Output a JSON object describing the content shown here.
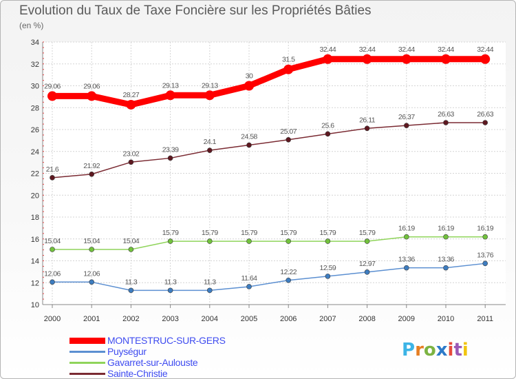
{
  "title": "Evolution du Taux de Taxe Foncière sur les Propriétés Bâties",
  "subtitle": "(en %)",
  "logo": {
    "text": "Proxiti",
    "colors": [
      "#3cb4e6",
      "#e67e22",
      "#7cb342",
      "#2c7ac9",
      "#e74c3c",
      "#9b59b6",
      "#f1c40f"
    ]
  },
  "chart_data": {
    "type": "line",
    "x": [
      "2000",
      "2001",
      "2002",
      "2003",
      "2004",
      "2005",
      "2006",
      "2007",
      "2008",
      "2009",
      "2010",
      "2011"
    ],
    "ylim": [
      10,
      34
    ],
    "yticks": [
      "10",
      "12",
      "14",
      "16",
      "18",
      "20",
      "22",
      "24",
      "26",
      "28",
      "30",
      "32",
      "34"
    ],
    "grid": true,
    "legend_placement": "bottom-left",
    "series": [
      {
        "name": "MONTESTRUC-SUR-GERS",
        "color": "#ff0000",
        "marker_color": "#ff0000",
        "values": [
          29.06,
          29.06,
          28.27,
          29.13,
          29.13,
          30,
          31.5,
          32.44,
          32.44,
          32.44,
          32.44,
          32.44
        ],
        "labels": [
          "29.06",
          "29.06",
          "28.27",
          "29.13",
          "29.13",
          "30",
          "31.5",
          "32.44",
          "32.44",
          "32.44",
          "32.44",
          "32.44"
        ]
      },
      {
        "name": "Puységur",
        "color": "#5b8fd1",
        "marker_color": "#3e7dc0",
        "values": [
          12.06,
          12.06,
          11.3,
          11.3,
          11.3,
          11.64,
          12.22,
          12.59,
          12.97,
          13.36,
          13.36,
          13.76
        ],
        "labels": [
          "12.06",
          "12.06",
          "11.3",
          "11.3",
          "11.3",
          "11.64",
          "12.22",
          "12.59",
          "12.97",
          "13.36",
          "13.36",
          "13.76"
        ]
      },
      {
        "name": "Gavarret-sur-Aulouste",
        "color": "#8fd45a",
        "marker_color": "#72c23d",
        "values": [
          15.04,
          15.04,
          15.04,
          15.79,
          15.79,
          15.79,
          15.79,
          15.79,
          15.79,
          16.19,
          16.19,
          16.19
        ],
        "labels": [
          "15.04",
          "15.04",
          "15.04",
          "15.79",
          "15.79",
          "15.79",
          "15.79",
          "15.79",
          "15.79",
          "16.19",
          "16.19",
          "16.19"
        ]
      },
      {
        "name": "Sainte-Christie",
        "color": "#7a2a32",
        "marker_color": "#5e1820",
        "values": [
          21.6,
          21.92,
          23.02,
          23.39,
          24.1,
          24.58,
          25.07,
          25.6,
          26.11,
          26.37,
          26.63,
          26.63
        ],
        "labels": [
          "21.6",
          "21.92",
          "23.02",
          "23.39",
          "24.1",
          "24.58",
          "25.07",
          "25.6",
          "26.11",
          "26.37",
          "26.63",
          "26.63"
        ]
      }
    ]
  }
}
